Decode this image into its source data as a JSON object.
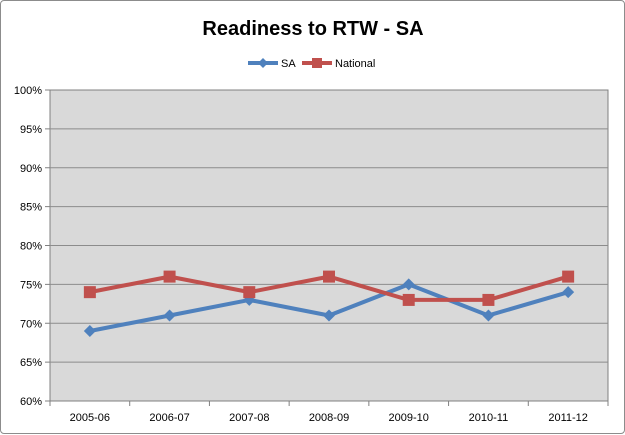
{
  "chart_data": {
    "type": "line",
    "title": "Readiness to RTW - SA",
    "categories": [
      "2005-06",
      "2006-07",
      "2007-08",
      "2008-09",
      "2009-10",
      "2010-11",
      "2011-12"
    ],
    "series": [
      {
        "name": "SA",
        "values": [
          69,
          71,
          73,
          71,
          75,
          71,
          74
        ],
        "color": "#4f81bd",
        "marker": "diamond"
      },
      {
        "name": "National",
        "values": [
          74,
          76,
          74,
          76,
          73,
          73,
          76
        ],
        "color": "#c0504d",
        "marker": "square"
      }
    ],
    "ylim": [
      60,
      100
    ],
    "y_ticks": [
      "60%",
      "65%",
      "70%",
      "75%",
      "80%",
      "85%",
      "90%",
      "95%",
      "100%"
    ],
    "legend_position": "top",
    "grid": true,
    "plot_background": "#d9d9d9"
  }
}
